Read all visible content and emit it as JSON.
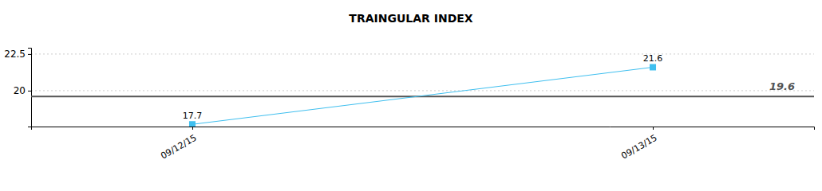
{
  "chart_data": {
    "type": "line",
    "title": "TRAINGULAR INDEX",
    "categories": [
      "09/12/15",
      "09/13/15"
    ],
    "values": [
      17.7,
      21.6
    ],
    "color": "#3fbfef",
    "marker": "square",
    "data_labels": true,
    "hline": 19.6,
    "ylim": [
      17.55,
      22.93
    ],
    "yticks": [
      20,
      22.5
    ],
    "grid": true
  }
}
